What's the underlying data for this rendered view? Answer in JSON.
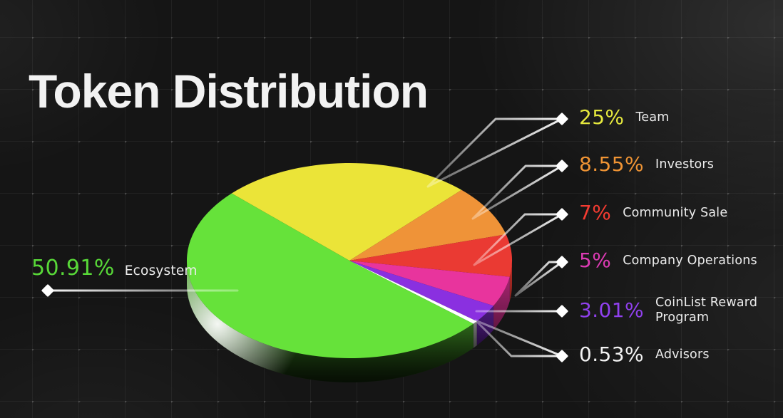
{
  "chart_data": {
    "type": "pie",
    "style": "3d-elliptical",
    "title": "Token Distribution",
    "unit": "%",
    "total": 100,
    "direction": "clockwise",
    "start_angle_deg": 136.4,
    "leader_marker": "diamond",
    "legend_position": "right column; Ecosystem labeled on left",
    "slices": [
      {
        "label": "Team",
        "value": 25,
        "pct_label": "25%",
        "color": "#ebe438",
        "text_color": "#e6e93e"
      },
      {
        "label": "Investors",
        "value": 8.55,
        "pct_label": "8.55%",
        "color": "#ef9338",
        "text_color": "#f09434"
      },
      {
        "label": "Community Sale",
        "value": 7,
        "pct_label": "7%",
        "color": "#ea3a33",
        "text_color": "#f43b31"
      },
      {
        "label": "Company Operations",
        "value": 5,
        "pct_label": "5%",
        "color": "#e8349d",
        "text_color": "#dd3bb4"
      },
      {
        "label": "CoinList Reward Program",
        "value": 3.01,
        "pct_label": "3.01%",
        "color": "#8a30e0",
        "text_color": "#9040ee"
      },
      {
        "label": "Advisors",
        "value": 0.53,
        "pct_label": "0.53%",
        "color": "#ffffff",
        "text_color": "#f2f2f2"
      },
      {
        "label": "Ecosystem",
        "value": 50.91,
        "pct_label": "50.91%",
        "color": "#66e23a",
        "text_color": "#58d838"
      }
    ]
  }
}
